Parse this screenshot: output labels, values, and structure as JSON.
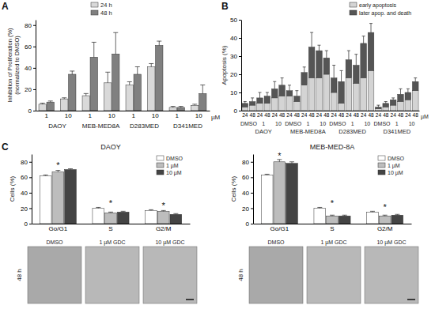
{
  "chart_data": [
    {
      "type": "bar",
      "y_label": "Inhibition of Proliferation (%)",
      "y_label_sub": "(normalized to DMSO)",
      "categories": [
        "1",
        "10",
        "1",
        "10",
        "1",
        "10",
        "1",
        "10"
      ],
      "groups": [
        "DAOY",
        "MEB-MED8A",
        "D283MED",
        "D341MED"
      ],
      "x_unit": "µM",
      "series": [
        {
          "name": "24 h",
          "color": "#d9d9d9",
          "values": [
            6,
            11,
            14,
            26,
            24,
            41,
            3,
            5
          ],
          "errors": [
            1,
            1,
            2,
            10,
            3,
            3,
            1,
            1
          ]
        },
        {
          "name": "48 h",
          "color": "#808080",
          "values": [
            8,
            34,
            50,
            53,
            34,
            61,
            3,
            16
          ],
          "errors": [
            1,
            3,
            14,
            20,
            7,
            4,
            1,
            8
          ]
        }
      ],
      "ylim": [
        0,
        85
      ],
      "yticks": [
        0,
        20,
        40,
        60,
        80
      ],
      "legend": "top"
    },
    {
      "type": "bar",
      "stacked": true,
      "y_label": "Apoptosis (%)",
      "categories": [
        "24",
        "48",
        "24",
        "48",
        "24",
        "48",
        "24",
        "48",
        "24",
        "48",
        "24",
        "48",
        "24",
        "48",
        "24",
        "48",
        "24",
        "48",
        "24",
        "48",
        "24",
        "48",
        "24",
        "48"
      ],
      "treatments": [
        "DMSO",
        "1",
        "10",
        "DMSO",
        "1",
        "10",
        "DMSO",
        "1",
        "10",
        "DMSO",
        "1",
        "10"
      ],
      "groups": [
        "DAOY",
        "MEB-MED8A",
        "D283MED",
        "D341MED"
      ],
      "x_unit": "µM",
      "series": [
        {
          "name": "early apoptosis",
          "color": "#d4d4d4",
          "values": [
            2,
            3,
            4,
            4,
            7,
            8,
            8,
            5,
            14,
            18,
            18,
            20,
            10,
            4,
            18,
            15,
            18,
            22,
            1,
            2,
            3,
            5,
            6,
            11
          ]
        },
        {
          "name": "later apop. and death",
          "color": "#555555",
          "values": [
            2,
            2,
            3,
            4,
            5,
            6,
            3,
            3,
            7,
            17,
            15,
            9,
            8,
            12,
            10,
            10,
            19,
            21,
            1,
            2,
            3,
            4,
            4,
            5
          ],
          "errors": [
            1,
            2,
            3,
            2,
            4,
            4,
            3,
            3,
            3,
            8,
            3,
            4,
            7,
            6,
            5,
            6,
            4,
            5,
            1,
            1,
            1,
            3,
            2,
            2
          ]
        }
      ],
      "ylim": [
        0,
        50
      ],
      "yticks": [
        0,
        10,
        20,
        30,
        40,
        50
      ],
      "legend": "top-right"
    },
    {
      "type": "bar",
      "title": "DAOY",
      "y_label": "Cells (%)",
      "categories": [
        "Go/G1",
        "S",
        "G2/M"
      ],
      "annotations": [
        "*",
        "*",
        "*"
      ],
      "series": [
        {
          "name": "DMSO",
          "color": "#ffffff",
          "values": [
            62,
            20,
            17
          ],
          "errors": [
            1,
            1,
            1
          ]
        },
        {
          "name": "1 µM",
          "color": "#bdbdbd",
          "values": [
            67,
            14,
            16
          ],
          "errors": [
            2,
            1,
            1
          ]
        },
        {
          "name": "10 µM",
          "color": "#444444",
          "values": [
            70,
            15,
            12
          ],
          "errors": [
            1,
            1,
            1
          ]
        }
      ],
      "ylim": [
        0,
        90
      ],
      "yticks": [
        0,
        20,
        40,
        60,
        80
      ],
      "legend": "top-right"
    },
    {
      "type": "bar",
      "title": "MEB-MED-8A",
      "y_label": "Cells (%)",
      "categories": [
        "Go/G1",
        "S",
        "G2/M"
      ],
      "annotations": [
        "*",
        "*",
        "*"
      ],
      "series": [
        {
          "name": "DMSO",
          "color": "#ffffff",
          "values": [
            63,
            20,
            15
          ],
          "errors": [
            1,
            1,
            1
          ]
        },
        {
          "name": "1 µM",
          "color": "#bdbdbd",
          "values": [
            80,
            10,
            10
          ],
          "errors": [
            3,
            1,
            1
          ]
        },
        {
          "name": "10 µM",
          "color": "#444444",
          "values": [
            78,
            10,
            11
          ],
          "errors": [
            2,
            1,
            1
          ]
        }
      ],
      "ylim": [
        0,
        90
      ],
      "yticks": [
        0,
        20,
        40,
        60,
        80
      ],
      "legend": "top-right"
    }
  ],
  "panel_labels": [
    "A",
    "B",
    "C"
  ],
  "micrographs": [
    {
      "time": "48 h",
      "labels": [
        "DMSO",
        "1 µM GDC",
        "10 µM GDC"
      ]
    },
    {
      "time": "48 h",
      "labels": [
        "DMSO",
        "1 µM GDC",
        "10 µM GDC"
      ]
    }
  ]
}
